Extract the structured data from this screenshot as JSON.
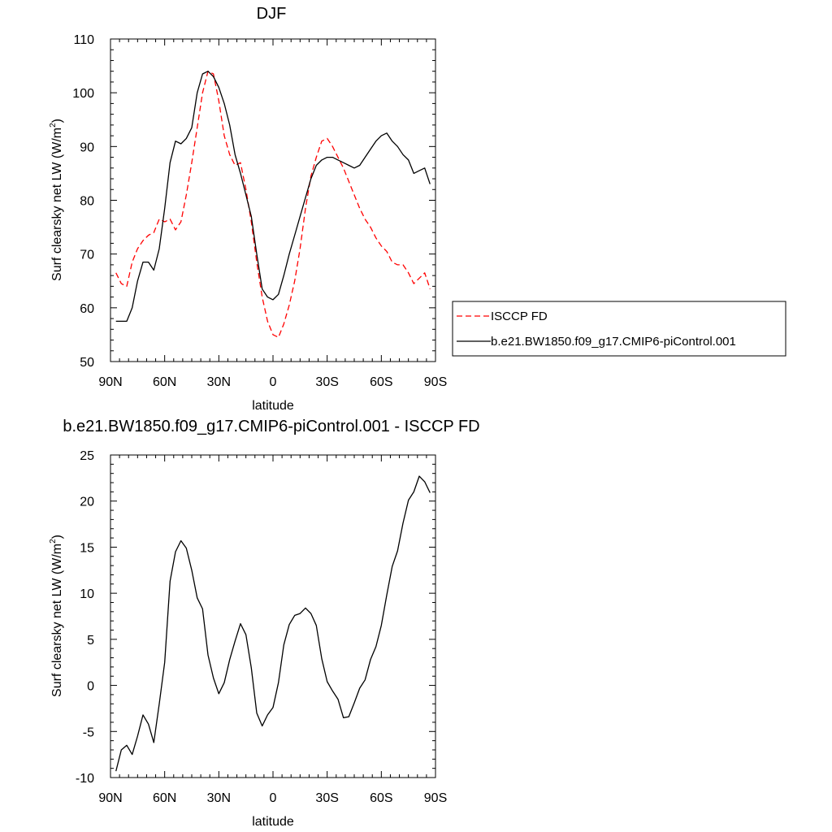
{
  "chart_data": [
    {
      "type": "line",
      "title": "DJF",
      "xlabel": "latitude",
      "ylabel": "Surf clearsky net LW (W/m",
      "ylabel_sup": "2",
      "ylabel_end": ")",
      "xlim": [
        90,
        -90
      ],
      "ylim": [
        50,
        110
      ],
      "xticks": [
        90,
        60,
        30,
        0,
        -30,
        -60,
        -90
      ],
      "xtick_labels": [
        "90N",
        "60N",
        "30N",
        "0",
        "30S",
        "60S",
        "90S"
      ],
      "yticks": [
        50,
        60,
        70,
        80,
        90,
        100,
        110
      ],
      "ytick_labels": [
        "50",
        "60",
        "70",
        "80",
        "90",
        "100",
        "110"
      ],
      "grid": false,
      "legend_position": "right",
      "series": [
        {
          "name": "ISCCP FD",
          "color": "#ff0000",
          "dash": "dashed",
          "x": [
            87,
            84,
            81,
            78,
            75,
            72,
            69,
            66,
            63,
            60,
            57,
            54,
            51,
            48,
            45,
            42,
            39,
            36,
            33,
            30,
            27,
            24,
            21,
            18,
            15,
            12,
            9,
            6,
            3,
            0,
            -3,
            -6,
            -9,
            -12,
            -15,
            -18,
            -21,
            -24,
            -27,
            -30,
            -33,
            -36,
            -39,
            -42,
            -45,
            -48,
            -51,
            -54,
            -57,
            -60,
            -63,
            -66,
            -69,
            -72,
            -75,
            -78,
            -81,
            -84,
            -87
          ],
          "y": [
            66.5,
            64.5,
            64.0,
            68.5,
            71.0,
            72.5,
            73.5,
            74.0,
            76.5,
            76.0,
            76.5,
            74.5,
            76.0,
            81.0,
            87.0,
            93.5,
            100.0,
            104.0,
            103.5,
            98.5,
            92.0,
            88.5,
            86.5,
            87.0,
            82.0,
            76.0,
            68.5,
            62.0,
            57.5,
            55.0,
            54.5,
            57.0,
            60.5,
            65.0,
            71.0,
            78.5,
            84.5,
            88.0,
            91.0,
            91.5,
            90.0,
            88.0,
            86.0,
            83.5,
            81.0,
            78.5,
            76.5,
            75.0,
            73.0,
            71.5,
            70.5,
            68.5,
            68.0,
            68.0,
            66.5,
            64.5,
            65.5,
            66.5,
            63.5
          ]
        },
        {
          "name": "b.e21.BW1850.f09_g17.CMIP6-piControl.001",
          "color": "#000000",
          "dash": "solid",
          "x": [
            87,
            84,
            81,
            78,
            75,
            72,
            69,
            66,
            63,
            60,
            57,
            54,
            51,
            48,
            45,
            42,
            39,
            36,
            33,
            30,
            27,
            24,
            21,
            18,
            15,
            12,
            9,
            6,
            3,
            0,
            -3,
            -6,
            -9,
            -12,
            -15,
            -18,
            -21,
            -24,
            -27,
            -30,
            -33,
            -36,
            -39,
            -42,
            -45,
            -48,
            -51,
            -54,
            -57,
            -60,
            -63,
            -66,
            -69,
            -72,
            -75,
            -78,
            -81,
            -84,
            -87
          ],
          "y": [
            57.5,
            57.5,
            57.5,
            60.0,
            65.0,
            68.5,
            68.5,
            67.0,
            71.0,
            78.5,
            87.0,
            91.0,
            90.5,
            91.5,
            93.5,
            100.0,
            103.5,
            104.0,
            103.0,
            101.0,
            98.0,
            94.0,
            88.5,
            85.0,
            81.0,
            77.0,
            70.0,
            63.5,
            62.0,
            61.5,
            62.5,
            66.0,
            70.0,
            73.5,
            77.0,
            80.5,
            84.0,
            86.5,
            87.5,
            88.0,
            88.0,
            87.5,
            87.0,
            86.5,
            86.0,
            86.5,
            88.0,
            89.5,
            91.0,
            92.0,
            92.5,
            91.0,
            90.0,
            88.5,
            87.5,
            85.0,
            85.5,
            86.0,
            83.0
          ]
        }
      ]
    },
    {
      "type": "line",
      "title": "b.e21.BW1850.f09_g17.CMIP6-piControl.001 - ISCCP FD",
      "xlabel": "latitude",
      "ylabel": "Surf clearsky net LW (W/m",
      "ylabel_sup": "2",
      "ylabel_end": ")",
      "xlim": [
        90,
        -90
      ],
      "ylim": [
        -10,
        25
      ],
      "xticks": [
        90,
        60,
        30,
        0,
        -30,
        -60,
        -90
      ],
      "xtick_labels": [
        "90N",
        "60N",
        "30N",
        "0",
        "30S",
        "60S",
        "90S"
      ],
      "yticks": [
        -10,
        -5,
        0,
        5,
        10,
        15,
        20,
        25
      ],
      "ytick_labels": [
        "-10",
        "-5",
        "0",
        "5",
        "10",
        "15",
        "20",
        "25"
      ],
      "grid": false,
      "series": [
        {
          "color": "#000000",
          "dash": "solid",
          "x": [
            87,
            84,
            81,
            78,
            75,
            72,
            69,
            66,
            63,
            60,
            57,
            54,
            51,
            48,
            45,
            42,
            39,
            36,
            33,
            30,
            27,
            24,
            21,
            18,
            15,
            12,
            9,
            6,
            3,
            0,
            -3,
            -6,
            -9,
            -12,
            -15,
            -18,
            -21,
            -24,
            -27,
            -30,
            -33,
            -36,
            -39,
            -42,
            -45,
            -48,
            -51,
            -54,
            -57,
            -60,
            -63,
            -66,
            -69,
            -72,
            -75,
            -78,
            -81,
            -84,
            -87
          ],
          "y": [
            -9.3,
            -7.0,
            -6.5,
            -7.5,
            -5.5,
            -3.2,
            -4.2,
            -6.2,
            -2.0,
            2.5,
            11.3,
            14.5,
            15.7,
            14.9,
            12.5,
            9.5,
            8.3,
            3.3,
            0.8,
            -0.9,
            0.3,
            2.8,
            4.8,
            6.7,
            5.5,
            1.9,
            -3.0,
            -4.4,
            -3.2,
            -2.4,
            0.3,
            4.4,
            6.6,
            7.6,
            7.8,
            8.4,
            7.8,
            6.5,
            2.9,
            0.4,
            -0.6,
            -1.5,
            -3.5,
            -3.4,
            -1.9,
            -0.3,
            0.6,
            2.8,
            4.2,
            6.5,
            9.8,
            12.9,
            14.6,
            17.6,
            20.1,
            21.0,
            22.7,
            22.1,
            20.9
          ]
        }
      ]
    }
  ]
}
